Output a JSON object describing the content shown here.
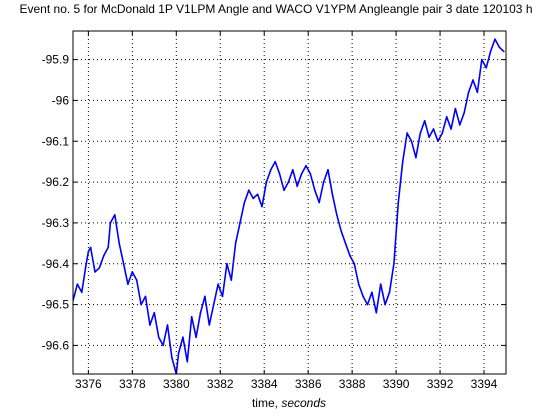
{
  "chart_data": {
    "type": "line",
    "title": "Event no. 5 for  McDonald 1P V1LPM Angle and WACO V1YPM Angleangle pair 3 date 120103 h",
    "xlabel": "time,",
    "xlabel_unit": "seconds",
    "ylabel": "",
    "xlim": [
      3375.3,
      3395.0
    ],
    "ylim": [
      -96.67,
      -95.83
    ],
    "xticks": [
      "3376",
      "3378",
      "3380",
      "3382",
      "3384",
      "3386",
      "3388",
      "3390",
      "3392",
      "3394"
    ],
    "yticks": [
      "-95.9",
      "-96",
      "-96.1",
      "-96.2",
      "-96.3",
      "-96.4",
      "-96.5",
      "-96.6"
    ],
    "grid": true,
    "series": [
      {
        "color": "#0000ff",
        "x": [
          3375.3,
          3375.5,
          3375.7,
          3375.9,
          3376.0,
          3376.1,
          3376.3,
          3376.5,
          3376.7,
          3376.9,
          3377.0,
          3377.2,
          3377.4,
          3377.6,
          3377.8,
          3378.0,
          3378.2,
          3378.4,
          3378.6,
          3378.8,
          3379.0,
          3379.2,
          3379.4,
          3379.6,
          3379.8,
          3380.0,
          3380.1,
          3380.3,
          3380.5,
          3380.7,
          3380.9,
          3381.1,
          3381.3,
          3381.5,
          3381.7,
          3381.9,
          3382.1,
          3382.3,
          3382.5,
          3382.7,
          3382.9,
          3383.1,
          3383.3,
          3383.5,
          3383.7,
          3383.9,
          3384.1,
          3384.3,
          3384.5,
          3384.7,
          3384.9,
          3385.1,
          3385.3,
          3385.5,
          3385.7,
          3385.9,
          3386.1,
          3386.3,
          3386.5,
          3386.7,
          3386.9,
          3387.1,
          3387.3,
          3387.5,
          3387.7,
          3387.9,
          3388.1,
          3388.3,
          3388.5,
          3388.7,
          3388.9,
          3389.1,
          3389.3,
          3389.5,
          3389.7,
          3389.9,
          3390.1,
          3390.3,
          3390.5,
          3390.7,
          3390.9,
          3391.1,
          3391.3,
          3391.5,
          3391.7,
          3391.9,
          3392.1,
          3392.3,
          3392.5,
          3392.7,
          3392.9,
          3393.1,
          3393.3,
          3393.5,
          3393.7,
          3393.9,
          3394.1,
          3394.3,
          3394.5,
          3394.7,
          3394.9
        ],
        "y": [
          -96.49,
          -96.45,
          -96.47,
          -96.4,
          -96.37,
          -96.36,
          -96.42,
          -96.41,
          -96.38,
          -96.36,
          -96.3,
          -96.28,
          -96.35,
          -96.4,
          -96.45,
          -96.42,
          -96.44,
          -96.5,
          -96.48,
          -96.55,
          -96.52,
          -96.58,
          -96.6,
          -96.55,
          -96.63,
          -96.67,
          -96.62,
          -96.58,
          -96.64,
          -96.53,
          -96.58,
          -96.52,
          -96.48,
          -96.55,
          -96.5,
          -96.45,
          -96.48,
          -96.4,
          -96.44,
          -96.35,
          -96.3,
          -96.25,
          -96.22,
          -96.24,
          -96.23,
          -96.26,
          -96.2,
          -96.17,
          -96.15,
          -96.18,
          -96.22,
          -96.2,
          -96.17,
          -96.21,
          -96.18,
          -96.16,
          -96.18,
          -96.22,
          -96.25,
          -96.2,
          -96.17,
          -96.23,
          -96.28,
          -96.32,
          -96.35,
          -96.38,
          -96.4,
          -96.45,
          -96.48,
          -96.5,
          -96.47,
          -96.52,
          -96.45,
          -96.5,
          -96.47,
          -96.4,
          -96.25,
          -96.15,
          -96.08,
          -96.1,
          -96.14,
          -96.08,
          -96.05,
          -96.09,
          -96.07,
          -96.1,
          -96.08,
          -96.04,
          -96.07,
          -96.02,
          -96.06,
          -96.03,
          -95.98,
          -95.95,
          -95.98,
          -95.9,
          -95.92,
          -95.88,
          -95.85,
          -95.87,
          -95.88
        ]
      }
    ]
  }
}
